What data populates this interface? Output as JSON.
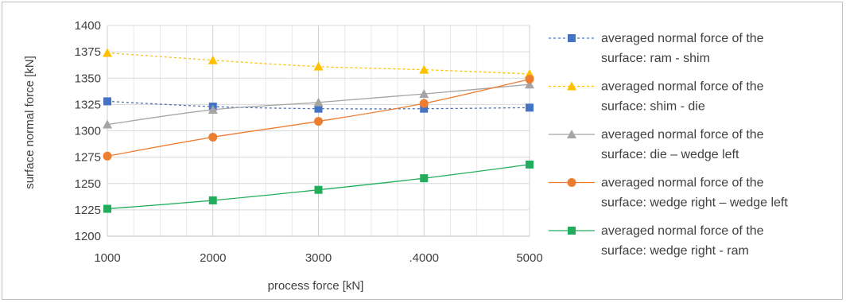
{
  "chart_data": {
    "type": "line",
    "xlabel": "process force [kN]",
    "ylabel": "surface normal force [kN]",
    "xlim": [
      1000,
      5000
    ],
    "ylim": [
      1200,
      1400
    ],
    "y_ticks": [
      "1200",
      "1225",
      "1250",
      "1275",
      "1300",
      "1325",
      "1350",
      "1375",
      "1400"
    ],
    "x_ticks": [
      "1000",
      "2000",
      "3000",
      ".4000",
      "5000"
    ],
    "x": [
      1000,
      2000,
      3000,
      4000,
      5000
    ],
    "grid": "major",
    "legend_position": "right",
    "series": [
      {
        "name_lines": [
          "averaged normal force of the",
          "surface: ram - shim"
        ],
        "values": [
          1328,
          1323,
          1321,
          1321,
          1322
        ],
        "color": "#4472c4",
        "marker": "square",
        "line": "dashed"
      },
      {
        "name_lines": [
          "averaged normal force of the",
          "surface: shim - die"
        ],
        "values": [
          1374,
          1367,
          1361,
          1358,
          1354
        ],
        "color": "#ffc000",
        "marker": "triangle",
        "line": "dashed"
      },
      {
        "name_lines": [
          "averaged normal force of the",
          "surface: die – wedge left"
        ],
        "values": [
          1306,
          1320,
          1327,
          1335,
          1344
        ],
        "color": "#a5a5a5",
        "marker": "triangle",
        "line": "solid"
      },
      {
        "name_lines": [
          "averaged normal force of the",
          "surface: wedge right  – wedge left"
        ],
        "values": [
          1276,
          1294,
          1309,
          1326,
          1349
        ],
        "color": "#ed7d31",
        "marker": "circle",
        "line": "solid"
      },
      {
        "name_lines": [
          "averaged normal force of the",
          "surface: wedge right - ram"
        ],
        "values": [
          1226,
          1234,
          1244,
          1255,
          1268
        ],
        "color": "#22ad5c",
        "marker": "square",
        "line": "solid"
      }
    ]
  }
}
